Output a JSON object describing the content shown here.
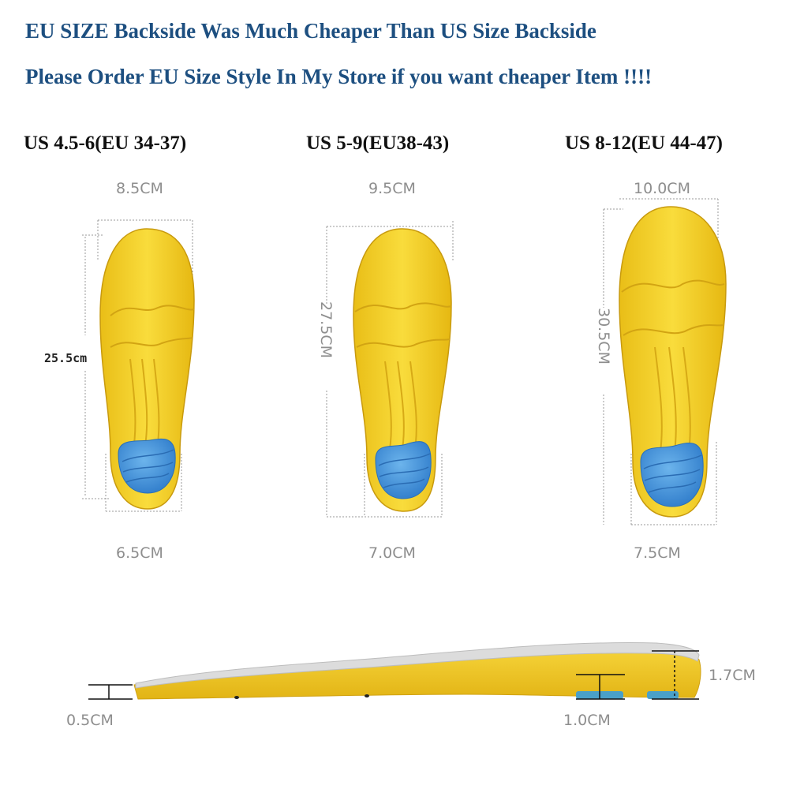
{
  "notice": {
    "line1": "EU SIZE Backside Was Much Cheaper Than US Size Backside",
    "line2": "Please Order EU Size Style In My Store if you want cheaper Item !!!!"
  },
  "insoles": [
    {
      "size": "US 4.5-6(EU 34-37)",
      "forefoot_width": "8.5CM",
      "length": "25.5cm",
      "heel_width": "6.5CM"
    },
    {
      "size": "US 5-9(EU38-43)",
      "forefoot_width": "9.5CM",
      "length": "27.5CM",
      "heel_width": "7.0CM"
    },
    {
      "size": "US 8-12(EU 44-47)",
      "forefoot_width": "10.0CM",
      "length": "30.5CM",
      "heel_width": "7.5CM"
    }
  ],
  "side_view": {
    "toe_thickness": "0.5CM",
    "arch_thickness": "1.0CM",
    "heel_thickness": "1.7CM"
  },
  "colors": {
    "notice_text": "#1d4f80",
    "insole_yellow": "#f7d230",
    "heel_pad_blue": "#3b8ed8",
    "top_layer_grey": "#d9d9d9"
  }
}
